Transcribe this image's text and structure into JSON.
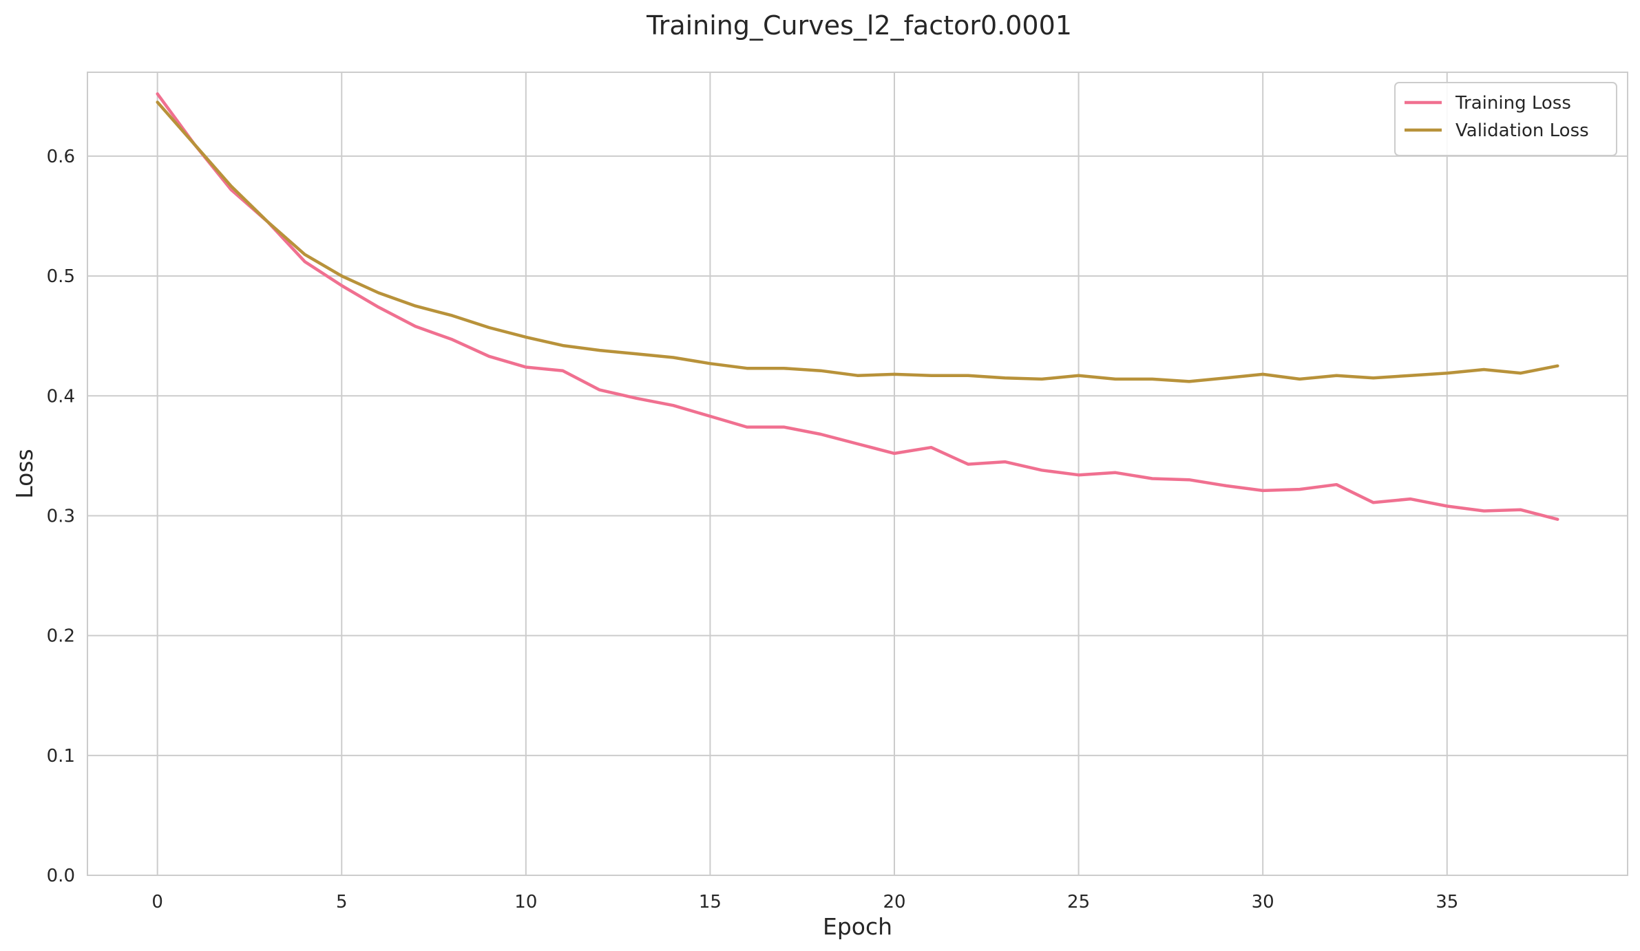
{
  "chart_data": {
    "type": "line",
    "title": "Training_Curves_l2_factor0.0001",
    "xlabel": "Epoch",
    "ylabel": "Loss",
    "xlim": [
      -1.9,
      39.9
    ],
    "ylim": [
      0.0,
      0.67
    ],
    "xticks": [
      0,
      5,
      10,
      15,
      20,
      25,
      30,
      35
    ],
    "xtick_labels": [
      "0",
      "5",
      "10",
      "15",
      "20",
      "25",
      "30",
      "35"
    ],
    "yticks": [
      0.0,
      0.1,
      0.2,
      0.3,
      0.4,
      0.5,
      0.6
    ],
    "ytick_labels": [
      "0.0",
      "0.1",
      "0.2",
      "0.3",
      "0.4",
      "0.5",
      "0.6"
    ],
    "grid": true,
    "legend": "upper right",
    "x": [
      0,
      1,
      2,
      3,
      4,
      5,
      6,
      7,
      8,
      9,
      10,
      11,
      12,
      13,
      14,
      15,
      16,
      17,
      18,
      19,
      20,
      21,
      22,
      23,
      24,
      25,
      26,
      27,
      28,
      29,
      30,
      31,
      32,
      33,
      34,
      35,
      36,
      37,
      38
    ],
    "series": [
      {
        "name": "Training Loss",
        "color": "#f07090",
        "values": [
          0.652,
          0.61,
          0.572,
          0.545,
          0.512,
          0.492,
          0.474,
          0.458,
          0.447,
          0.433,
          0.424,
          0.421,
          0.405,
          0.398,
          0.392,
          0.383,
          0.374,
          0.374,
          0.368,
          0.36,
          0.352,
          0.357,
          0.343,
          0.345,
          0.338,
          0.334,
          0.336,
          0.331,
          0.33,
          0.325,
          0.321,
          0.322,
          0.326,
          0.311,
          0.314,
          0.308,
          0.304,
          0.305,
          0.297
        ]
      },
      {
        "name": "Validation Loss",
        "color": "#b8923a",
        "values": [
          0.645,
          0.61,
          0.575,
          0.545,
          0.518,
          0.5,
          0.486,
          0.475,
          0.467,
          0.457,
          0.449,
          0.442,
          0.438,
          0.435,
          0.432,
          0.427,
          0.423,
          0.423,
          0.421,
          0.417,
          0.418,
          0.417,
          0.417,
          0.415,
          0.414,
          0.417,
          0.414,
          0.414,
          0.412,
          0.415,
          0.418,
          0.414,
          0.417,
          0.415,
          0.417,
          0.419,
          0.422,
          0.419,
          0.425
        ]
      }
    ]
  }
}
